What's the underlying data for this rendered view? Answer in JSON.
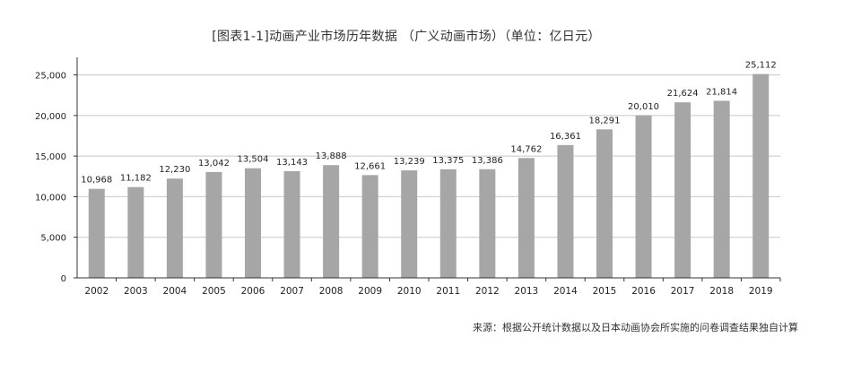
{
  "chart_data": {
    "type": "bar",
    "title": "[图表1-1]动画产业市场历年数据 （广义动画市场）（单位：亿日元）",
    "categories": [
      "2002",
      "2003",
      "2004",
      "2005",
      "2006",
      "2007",
      "2008",
      "2009",
      "2010",
      "2011",
      "2012",
      "2013",
      "2014",
      "2015",
      "2016",
      "2017",
      "2018",
      "2019"
    ],
    "values": [
      10968,
      11182,
      12230,
      13042,
      13504,
      13143,
      13888,
      12661,
      13239,
      13375,
      13386,
      14762,
      16361,
      18291,
      20010,
      21624,
      21814,
      25112
    ],
    "data_labels": [
      "10,968",
      "11,182",
      "12,230",
      "13,042",
      "13,504",
      "13,143",
      "13,888",
      "12,661",
      "13,239",
      "13,375",
      "13,386",
      "14,762",
      "16,361",
      "18,291",
      "20,010",
      "21,624",
      "21,814",
      "25,112"
    ],
    "yticks": [
      0,
      5000,
      10000,
      15000,
      20000,
      25000
    ],
    "ytick_labels": [
      "0",
      "5,000",
      "10,000",
      "15,000",
      "20,000",
      "25,000"
    ],
    "ylim": [
      0,
      26500
    ],
    "grid": true,
    "bar_color": "#a6a6a6",
    "source": "来源：根据公开统计数据以及日本动画协会所实施的问卷调查结果独自计算"
  }
}
